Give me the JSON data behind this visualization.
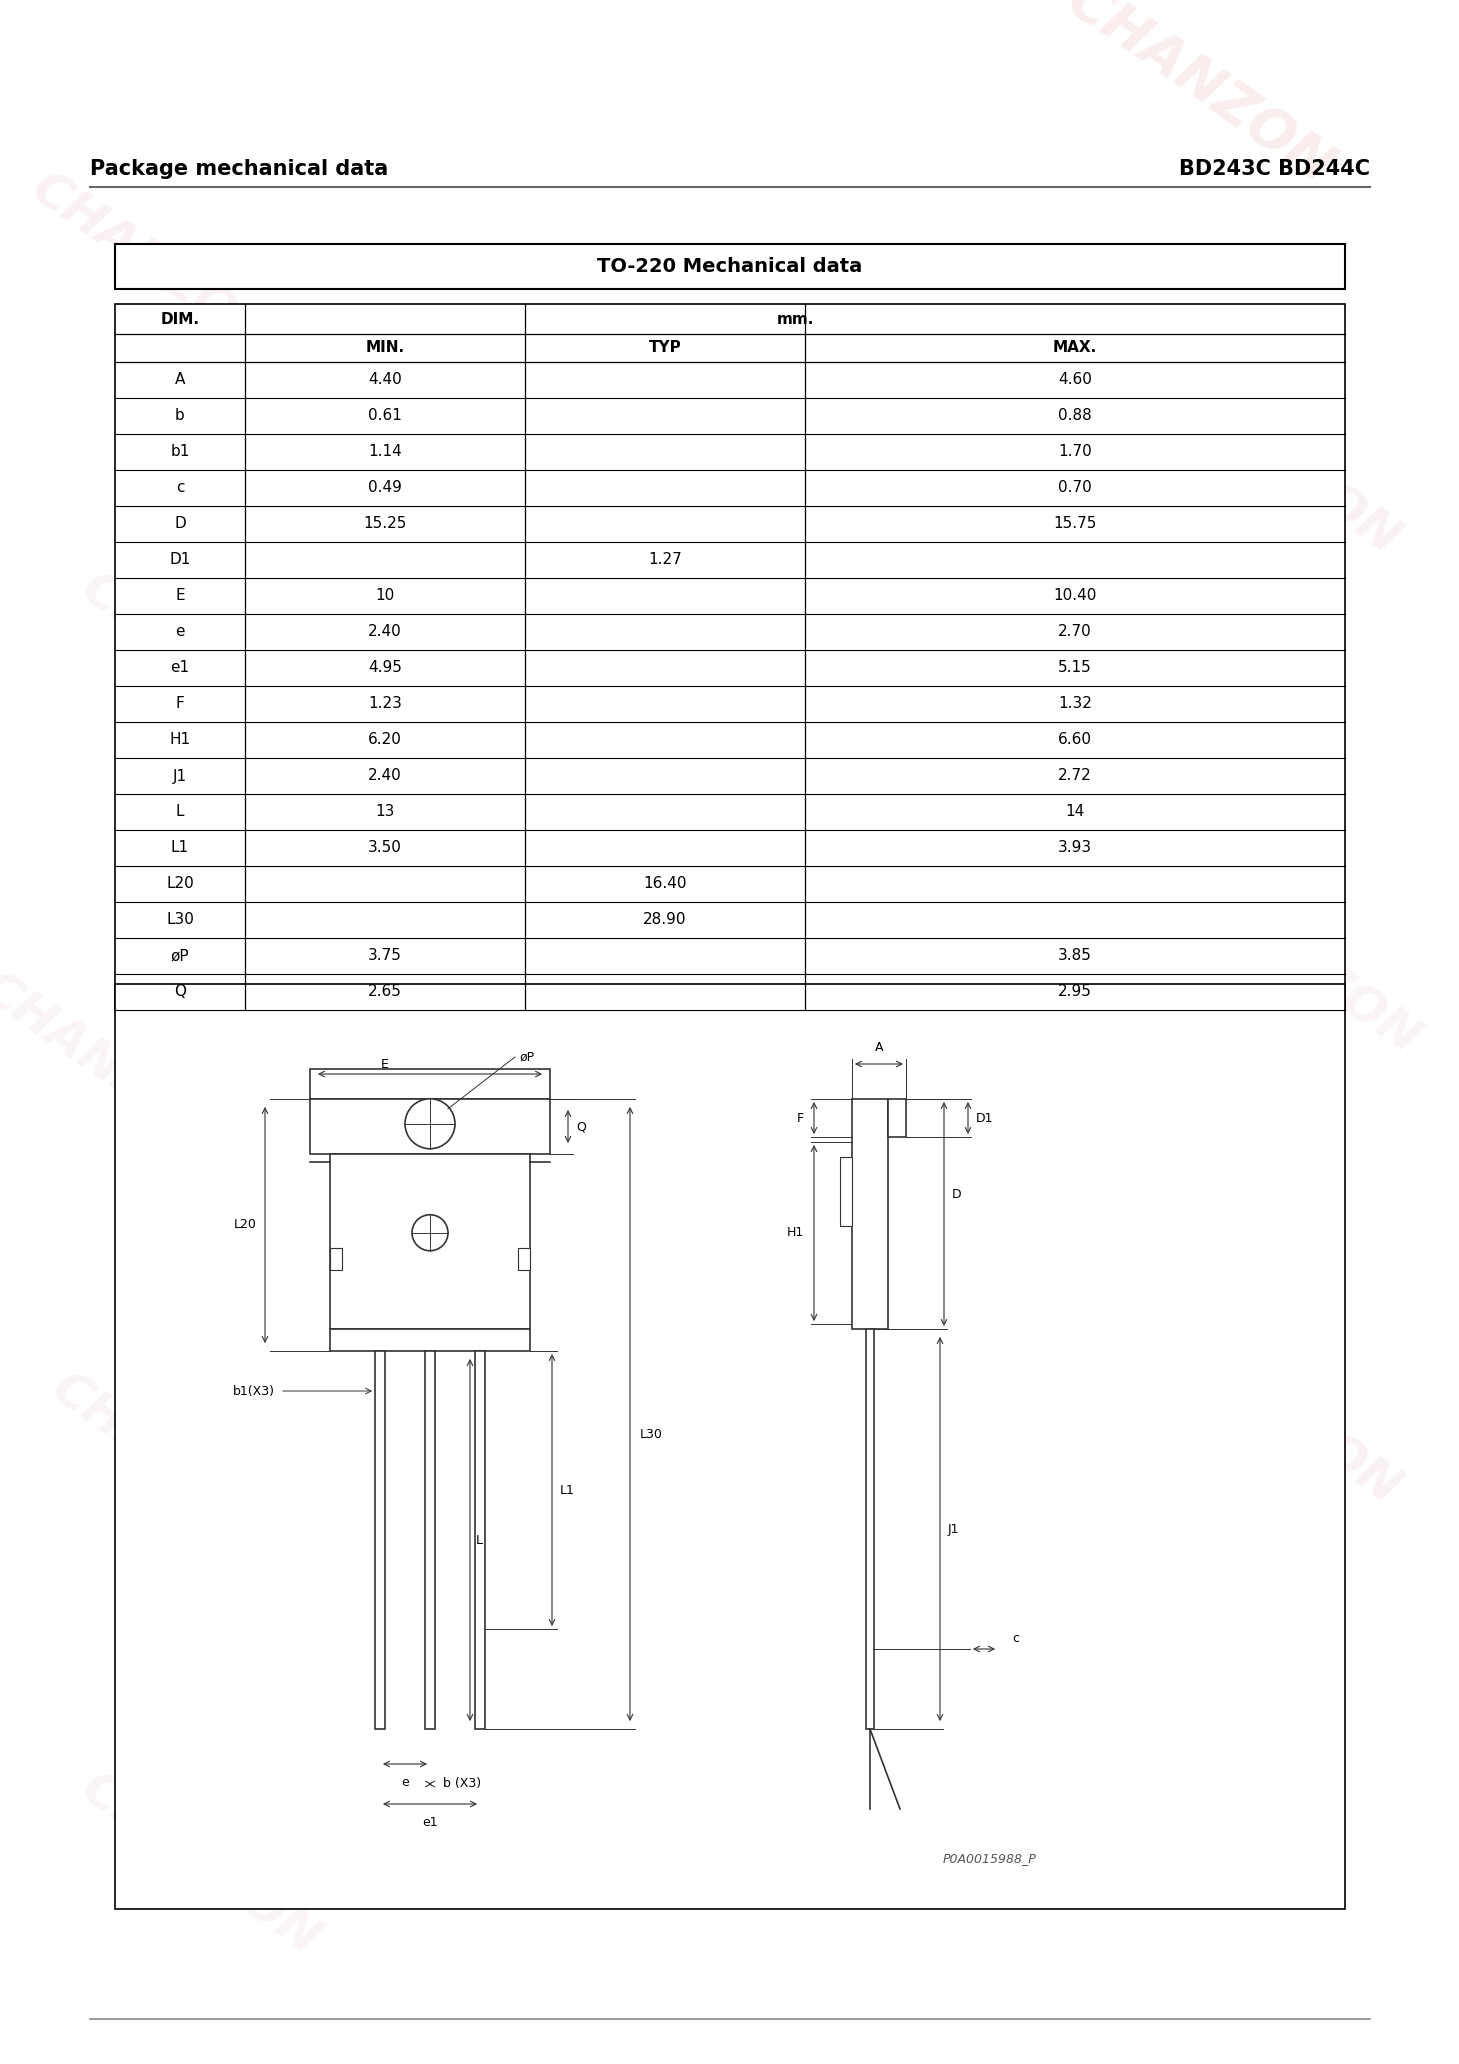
{
  "title_left": "Package mechanical data",
  "title_right": "BD243C BD244C",
  "table_title": "TO-220 Mechanical data",
  "rows": [
    [
      "A",
      "4.40",
      "",
      "4.60"
    ],
    [
      "b",
      "0.61",
      "",
      "0.88"
    ],
    [
      "b1",
      "1.14",
      "",
      "1.70"
    ],
    [
      "c",
      "0.49",
      "",
      "0.70"
    ],
    [
      "D",
      "15.25",
      "",
      "15.75"
    ],
    [
      "D1",
      "",
      "1.27",
      ""
    ],
    [
      "E",
      "10",
      "",
      "10.40"
    ],
    [
      "e",
      "2.40",
      "",
      "2.70"
    ],
    [
      "e1",
      "4.95",
      "",
      "5.15"
    ],
    [
      "F",
      "1.23",
      "",
      "1.32"
    ],
    [
      "H1",
      "6.20",
      "",
      "6.60"
    ],
    [
      "J1",
      "2.40",
      "",
      "2.72"
    ],
    [
      "L",
      "13",
      "",
      "14"
    ],
    [
      "L1",
      "3.50",
      "",
      "3.93"
    ],
    [
      "L20",
      "",
      "16.40",
      ""
    ],
    [
      "L30",
      "",
      "28.90",
      ""
    ],
    [
      "øP",
      "3.75",
      "",
      "3.85"
    ],
    [
      "Q",
      "2.65",
      "",
      "2.95"
    ]
  ],
  "bg_color": "#ffffff",
  "watermark_text": "CHANZON",
  "watermark_color": "#e8b8b8",
  "diagram_note": "P0A0015988_P",
  "header_line_color": "#666666",
  "table_line_color": "#000000"
}
